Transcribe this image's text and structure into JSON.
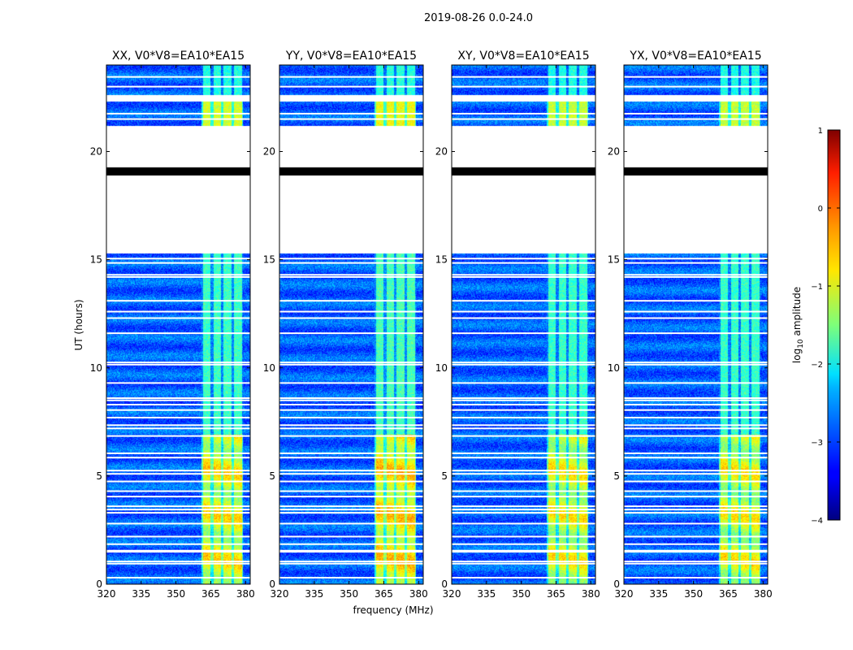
{
  "chart_data": {
    "type": "heatmap",
    "title": "2019-08-26 0.0-24.0",
    "xlabel": "frequency (MHz)",
    "ylabel": "UT (hours)",
    "xlim": [
      320,
      382
    ],
    "ylim": [
      0,
      24
    ],
    "xticks": [
      320,
      335,
      350,
      365,
      380
    ],
    "yticks": [
      0,
      5,
      10,
      15,
      20
    ],
    "xtick_labels": [
      "320",
      "335",
      "350",
      "365",
      "380"
    ],
    "ytick_labels": [
      "0",
      "5",
      "10",
      "15",
      "20"
    ],
    "panels": [
      {
        "name": "xx",
        "title": "XX, V0*V8=EA10*EA15",
        "band_start_mhz": 361,
        "band_strength": 1.0
      },
      {
        "name": "yy",
        "title": "YY, V0*V8=EA10*EA15",
        "band_start_mhz": 361,
        "band_strength": 1.1
      },
      {
        "name": "xy",
        "title": "XY, V0*V8=EA10*EA15",
        "band_start_mhz": 361,
        "band_strength": 0.95
      },
      {
        "name": "yx",
        "title": "YX, V0*V8=EA10*EA15",
        "band_start_mhz": 361,
        "band_strength": 0.95
      }
    ],
    "band": {
      "start_mhz": 361,
      "end_mhz": 379,
      "channel_edges_mhz": [
        361,
        365.5,
        370,
        374.5,
        379
      ]
    },
    "blank_ut_ranges": [
      [
        15.3,
        21.2
      ],
      [
        22.3,
        22.6
      ]
    ],
    "black_ut_ranges": [
      [
        18.9,
        19.25
      ]
    ],
    "flag_lines_ut": [
      0.3,
      0.95,
      1.05,
      1.5,
      1.55,
      1.85,
      2.2,
      2.8,
      3.3,
      3.45,
      3.6,
      4.05,
      4.3,
      4.75,
      5.1,
      5.25,
      5.85,
      6.05,
      6.85,
      7.2,
      7.35,
      7.7,
      8.05,
      8.3,
      8.5,
      8.6,
      9.3,
      10.15,
      10.25,
      11.6,
      12.3,
      12.6,
      13.1,
      14.2,
      14.3,
      14.85,
      15.05,
      21.5,
      21.75,
      23.0,
      23.45
    ],
    "colorbar": {
      "label": "log10 amplitude",
      "label_main": "log",
      "label_sub": "10",
      "label_rest": " amplitude",
      "min": -4,
      "max": 1,
      "ticks": [
        1,
        0,
        -1,
        -2,
        -3,
        -4
      ],
      "tick_labels": [
        "1",
        "0",
        "−1",
        "−2",
        "−3",
        "−4"
      ],
      "colormap": "jet"
    }
  }
}
